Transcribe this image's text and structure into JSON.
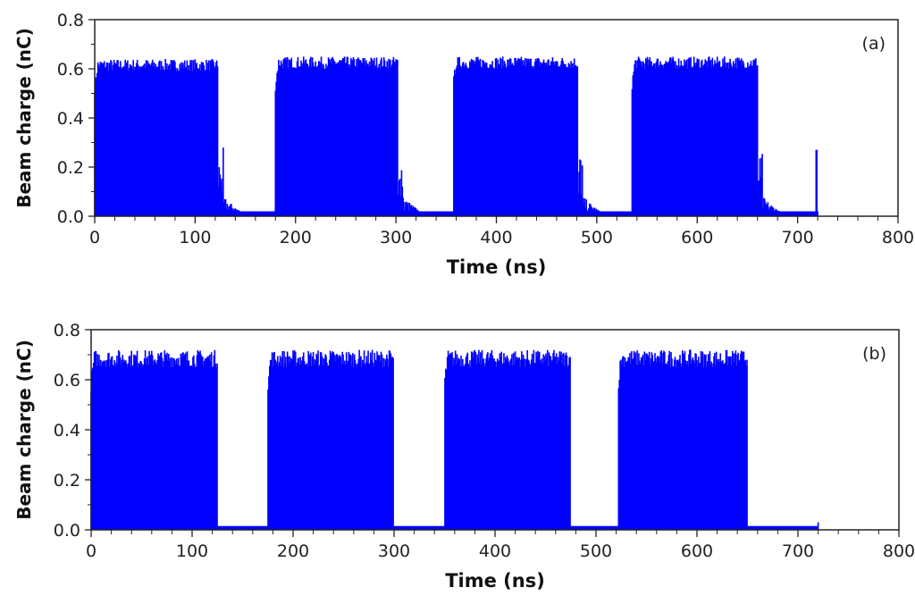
{
  "chart_data": [
    {
      "type": "bar",
      "panel_label": "(a)",
      "xlabel": "Time (ns)",
      "ylabel": "Beam charge (nC)",
      "xlim": [
        0,
        800
      ],
      "ylim": [
        0,
        0.8
      ],
      "xticks": [
        "0",
        "100",
        "200",
        "300",
        "400",
        "500",
        "600",
        "700",
        "800"
      ],
      "yticks": [
        "0.0",
        "0.2",
        "0.4",
        "0.6",
        "0.8"
      ],
      "color": "#0000ff",
      "data_end": 720,
      "baseline": 0.02,
      "pulses": [
        {
          "start": 0,
          "end": 123,
          "level": 0.62
        },
        {
          "start": 180,
          "end": 302,
          "level": 0.63
        },
        {
          "start": 357,
          "end": 481,
          "level": 0.63
        },
        {
          "start": 535,
          "end": 660,
          "level": 0.63
        }
      ],
      "final_spike": {
        "x": 719,
        "value": 0.27
      }
    },
    {
      "type": "bar",
      "panel_label": "(b)",
      "xlabel": "Time (ns)",
      "ylabel": "Beam charge (nC)",
      "xlim": [
        0,
        800
      ],
      "ylim": [
        0,
        0.8
      ],
      "xticks": [
        "0",
        "100",
        "200",
        "300",
        "400",
        "500",
        "600",
        "700",
        "800"
      ],
      "yticks": [
        "0.0",
        "0.2",
        "0.4",
        "0.6",
        "0.8"
      ],
      "color": "#0000ff",
      "data_end": 720,
      "baseline": 0.015,
      "pulses": [
        {
          "start": 0,
          "end": 125,
          "level": 0.68
        },
        {
          "start": 175,
          "end": 300,
          "level": 0.68
        },
        {
          "start": 350,
          "end": 475,
          "level": 0.68
        },
        {
          "start": 522,
          "end": 650,
          "level": 0.68
        }
      ],
      "final_spike": {
        "x": 720,
        "value": 0.03
      }
    }
  ]
}
